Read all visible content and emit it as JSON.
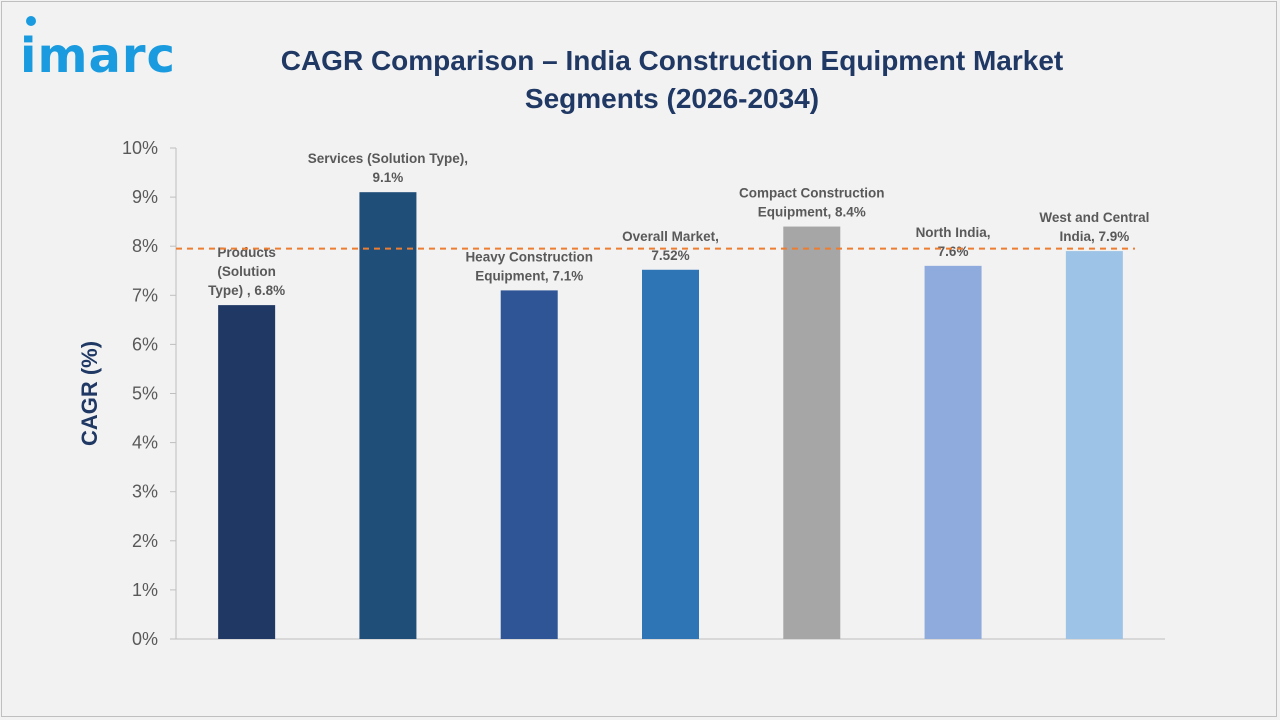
{
  "brand": {
    "logo_text": "imarc",
    "logo_color": "#1a9be0"
  },
  "header": {
    "title_line1": "CAGR Comparison – India Construction Equipment Market",
    "title_line2": "Segments (2026-2034)",
    "title_color": "#1f3864"
  },
  "chart_data": {
    "type": "bar",
    "title": "CAGR Comparison – India Construction Equipment Market Segments (2026-2034)",
    "xlabel": "",
    "ylabel": "CAGR (%)",
    "ylim": [
      0,
      10
    ],
    "yticks": [
      "0%",
      "1%",
      "2%",
      "3%",
      "4%",
      "5%",
      "6%",
      "7%",
      "8%",
      "9%",
      "10%"
    ],
    "grid": false,
    "legend": "none",
    "reference_line": {
      "value": 7.95,
      "color": "#ed7d31",
      "style": "dashed"
    },
    "categories": [
      "Products (Solution Type)",
      "Services (Solution Type)",
      "Heavy Construction Equipment",
      "Overall Market",
      "Compact Construction Equipment",
      "North India",
      "West and Central India"
    ],
    "values": [
      6.8,
      9.1,
      7.1,
      7.52,
      8.4,
      7.6,
      7.9
    ],
    "bar_colors": [
      "#203864",
      "#1f4e79",
      "#2f5597",
      "#2e75b6",
      "#a6a6a6",
      "#8faadc",
      "#9dc3e6"
    ],
    "data_labels": [
      [
        "Products",
        "(Solution",
        "Type) , 6.8%"
      ],
      [
        "Services (Solution Type),",
        "9.1%"
      ],
      [
        "Heavy Construction",
        "Equipment, 7.1%"
      ],
      [
        "Overall Market,",
        "7.52%"
      ],
      [
        "Compact Construction",
        "Equipment, 8.4%"
      ],
      [
        "North India,",
        "7.6%"
      ],
      [
        "West and Central",
        "India, 7.9%"
      ]
    ]
  }
}
